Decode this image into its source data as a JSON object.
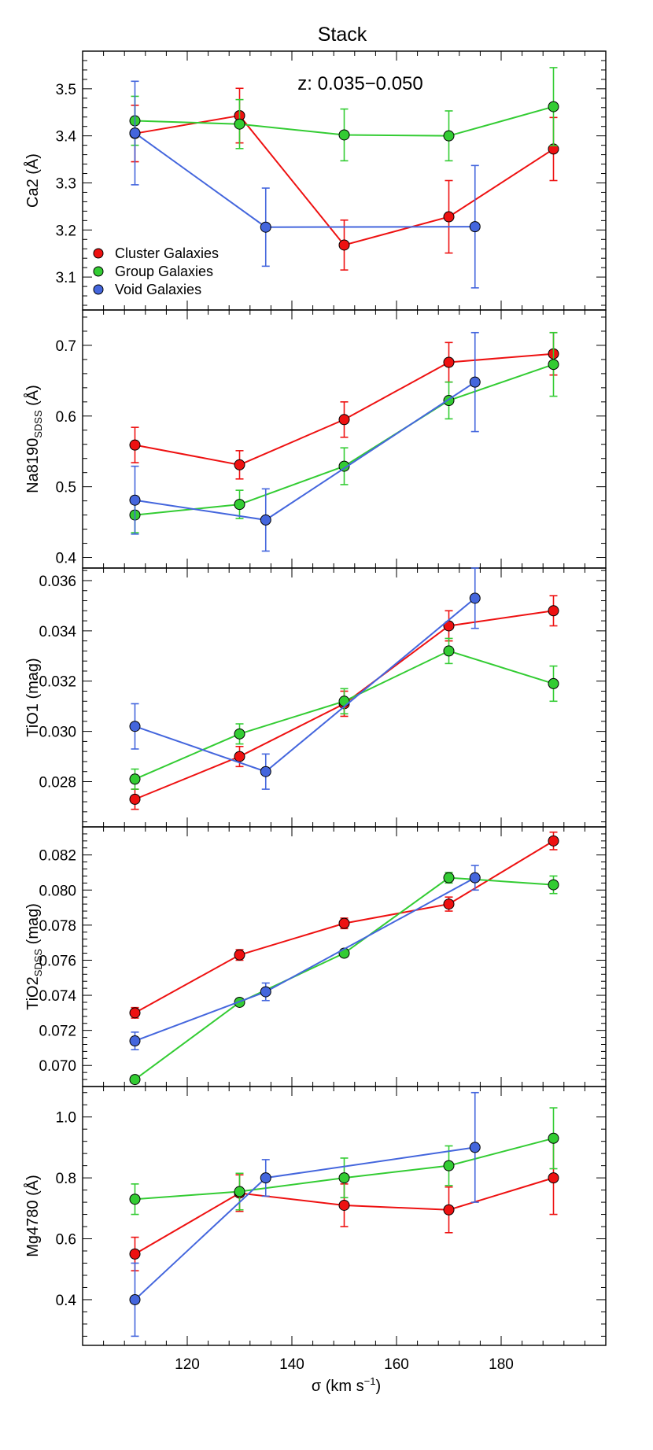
{
  "figure": {
    "title": "Stack",
    "annotation": "z: 0.035−0.050",
    "xlabel": "σ (km s",
    "xlabel_sup": "−1",
    "xlabel_end": ")",
    "xlim": [
      100,
      200
    ],
    "xticks": [
      120,
      140,
      160,
      180
    ],
    "legend": {
      "placement": "lower-left",
      "entries": [
        {
          "label": "Cluster Galaxies",
          "color": "#ee1111"
        },
        {
          "label": "Group Galaxies",
          "color": "#33cc33"
        },
        {
          "label": "Void Galaxies",
          "color": "#4466dd"
        }
      ]
    }
  },
  "chart_data": [
    {
      "type": "line",
      "ylabel": "Ca2 (Å)",
      "ylim": [
        3.03,
        3.58
      ],
      "yticks": [
        3.1,
        3.2,
        3.3,
        3.4,
        3.5
      ],
      "tick_decimals": 1,
      "series": [
        {
          "name": "Cluster Galaxies",
          "color": "#ee1111",
          "x": [
            110,
            130,
            150,
            170,
            190
          ],
          "y": [
            3.405,
            3.443,
            3.168,
            3.228,
            3.372
          ],
          "err": [
            0.06,
            0.058,
            0.053,
            0.077,
            0.067
          ]
        },
        {
          "name": "Group Galaxies",
          "color": "#33cc33",
          "x": [
            110,
            130,
            150,
            170,
            190
          ],
          "y": [
            3.432,
            3.425,
            3.402,
            3.4,
            3.462
          ],
          "err": [
            0.052,
            0.052,
            0.055,
            0.053,
            0.083
          ]
        },
        {
          "name": "Void Galaxies",
          "color": "#4466dd",
          "x": [
            110,
            135,
            175
          ],
          "y": [
            3.406,
            3.206,
            3.207
          ],
          "err": [
            0.11,
            0.083,
            0.13
          ]
        }
      ]
    },
    {
      "type": "line",
      "ylabel": "Na8190",
      "ylabel_sub": "SDSS",
      "ylabel_end": " (Å)",
      "ylim": [
        0.385,
        0.75
      ],
      "yticks": [
        0.4,
        0.5,
        0.6,
        0.7
      ],
      "tick_decimals": 1,
      "series": [
        {
          "name": "Cluster Galaxies",
          "color": "#ee1111",
          "x": [
            110,
            130,
            150,
            170,
            190
          ],
          "y": [
            0.559,
            0.531,
            0.595,
            0.676,
            0.688
          ],
          "err": [
            0.025,
            0.02,
            0.025,
            0.028,
            0.03
          ]
        },
        {
          "name": "Group Galaxies",
          "color": "#33cc33",
          "x": [
            110,
            130,
            150,
            170,
            190
          ],
          "y": [
            0.46,
            0.475,
            0.529,
            0.622,
            0.673
          ],
          "err": [
            0.025,
            0.02,
            0.026,
            0.026,
            0.045
          ]
        },
        {
          "name": "Void Galaxies",
          "color": "#4466dd",
          "x": [
            110,
            135,
            175
          ],
          "y": [
            0.481,
            0.453,
            0.648
          ],
          "err": [
            0.048,
            0.044,
            0.07
          ]
        }
      ]
    },
    {
      "type": "line",
      "ylabel": "TiO1 (mag)",
      "ylim": [
        0.0262,
        0.0365
      ],
      "yticks": [
        0.028,
        0.03,
        0.032,
        0.034,
        0.036
      ],
      "tick_decimals": 3,
      "series": [
        {
          "name": "Cluster Galaxies",
          "color": "#ee1111",
          "x": [
            110,
            130,
            150,
            170,
            190
          ],
          "y": [
            0.0273,
            0.029,
            0.0311,
            0.0342,
            0.0348
          ],
          "err": [
            0.0004,
            0.0004,
            0.0005,
            0.0006,
            0.0006
          ]
        },
        {
          "name": "Group Galaxies",
          "color": "#33cc33",
          "x": [
            110,
            130,
            150,
            170,
            190
          ],
          "y": [
            0.0281,
            0.0299,
            0.0312,
            0.0332,
            0.0319
          ],
          "err": [
            0.0004,
            0.0004,
            0.0005,
            0.0005,
            0.0007
          ]
        },
        {
          "name": "Void Galaxies",
          "color": "#4466dd",
          "x": [
            110,
            135,
            175
          ],
          "y": [
            0.0302,
            0.0284,
            0.0353
          ],
          "err": [
            0.0009,
            0.0007,
            0.0012
          ]
        }
      ]
    },
    {
      "type": "line",
      "ylabel": "TiO2",
      "ylabel_sub": "SDSS",
      "ylabel_end": " (mag)",
      "ylim": [
        0.0688,
        0.0836
      ],
      "yticks": [
        0.07,
        0.072,
        0.074,
        0.076,
        0.078,
        0.08,
        0.082
      ],
      "tick_decimals": 3,
      "series": [
        {
          "name": "Cluster Galaxies",
          "color": "#ee1111",
          "x": [
            110,
            130,
            150,
            170,
            190
          ],
          "y": [
            0.073,
            0.0763,
            0.0781,
            0.0792,
            0.0828
          ],
          "err": [
            0.0003,
            0.0003,
            0.0003,
            0.0004,
            0.0005
          ]
        },
        {
          "name": "Group Galaxies",
          "color": "#33cc33",
          "x": [
            110,
            130,
            150,
            170,
            190
          ],
          "y": [
            0.0692,
            0.0736,
            0.0764,
            0.0807,
            0.0803
          ],
          "err": [
            0.0002,
            0.0002,
            0.0002,
            0.0003,
            0.0005
          ]
        },
        {
          "name": "Void Galaxies",
          "color": "#4466dd",
          "x": [
            110,
            135,
            175
          ],
          "y": [
            0.0714,
            0.0742,
            0.0807
          ],
          "err": [
            0.0005,
            0.0005,
            0.0007
          ]
        }
      ]
    },
    {
      "type": "line",
      "ylabel": "Mg4780 (Å)",
      "ylim": [
        0.25,
        1.1
      ],
      "yticks": [
        0.4,
        0.6,
        0.8,
        1.0
      ],
      "tick_decimals": 1,
      "series": [
        {
          "name": "Cluster Galaxies",
          "color": "#ee1111",
          "x": [
            110,
            130,
            150,
            170,
            190
          ],
          "y": [
            0.55,
            0.75,
            0.71,
            0.695,
            0.8
          ],
          "err": [
            0.055,
            0.06,
            0.07,
            0.075,
            0.12
          ]
        },
        {
          "name": "Group Galaxies",
          "color": "#33cc33",
          "x": [
            110,
            130,
            150,
            170,
            190
          ],
          "y": [
            0.73,
            0.755,
            0.8,
            0.84,
            0.93
          ],
          "err": [
            0.05,
            0.06,
            0.065,
            0.065,
            0.1
          ]
        },
        {
          "name": "Void Galaxies",
          "color": "#4466dd",
          "x": [
            110,
            135,
            175
          ],
          "y": [
            0.4,
            0.8,
            0.9
          ],
          "err": [
            0.12,
            0.06,
            0.18
          ]
        }
      ]
    }
  ]
}
